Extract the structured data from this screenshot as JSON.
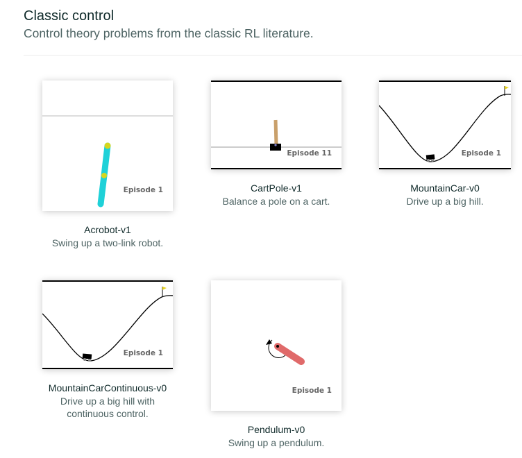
{
  "section": {
    "title": "Classic control",
    "subtitle": "Control theory problems from the classic RL literature."
  },
  "colors": {
    "acrobot_link": "#1fd1d8",
    "acrobot_joint": "#d6d61e",
    "cartpole_pole": "#c9a06b",
    "pendulum_rod": "#e06a6a",
    "flag": "#e6d21e"
  },
  "envs": [
    {
      "name": "Acrobot-v1",
      "description": "Swing up a two-link robot.",
      "episode": "Episode 1"
    },
    {
      "name": "CartPole-v1",
      "description": "Balance a pole on a cart.",
      "episode": "Episode 11"
    },
    {
      "name": "MountainCar-v0",
      "description": "Drive up a big hill.",
      "episode": "Episode 1"
    },
    {
      "name": "MountainCarContinuous-v0",
      "description": "Drive up a big hill with continuous control.",
      "episode": "Episode 1"
    },
    {
      "name": "Pendulum-v0",
      "description": "Swing up a pendulum.",
      "episode": "Episode 1"
    }
  ]
}
